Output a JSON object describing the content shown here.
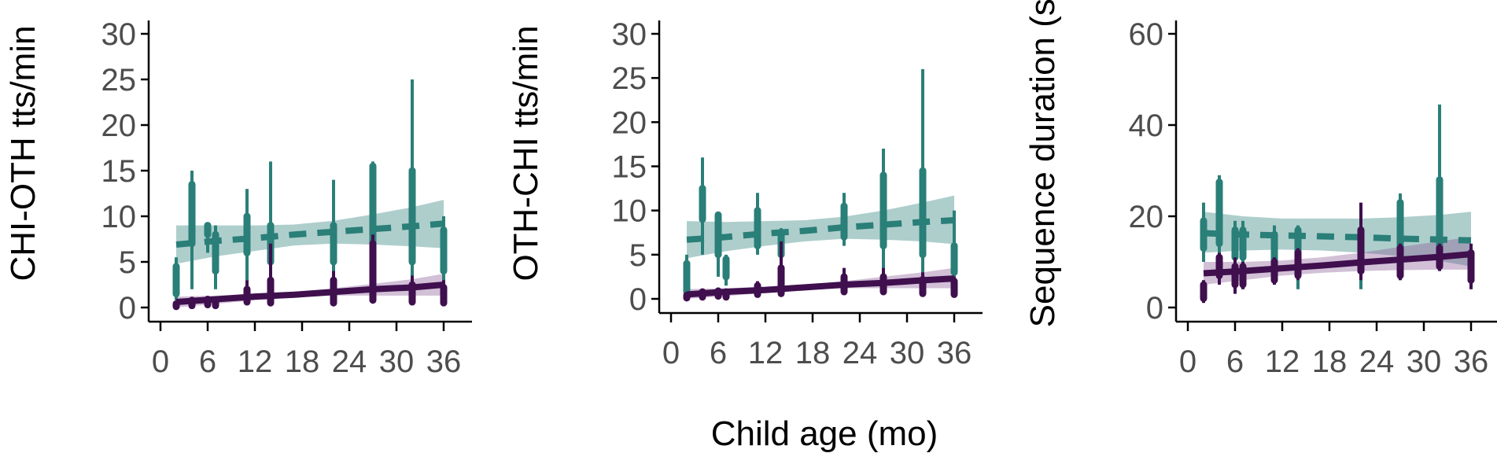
{
  "figure": {
    "shared_xlabel": "Child age (mo)"
  },
  "chart_data": [
    {
      "type": "line",
      "ylabel": "CHI-OTH tts/min",
      "xlabel": "",
      "xlim": [
        0,
        39
      ],
      "ylim": [
        -1.5,
        31
      ],
      "xticks": [
        0,
        6,
        12,
        18,
        24,
        30,
        36
      ],
      "yticks": [
        0,
        5,
        10,
        15,
        20,
        25,
        30
      ],
      "series": [
        {
          "color": "#2a7f78",
          "fill": "#2a7f78",
          "line_style": "dashed",
          "fit": {
            "x": [
              2,
              7,
              12,
              17,
              22,
              27,
              32,
              36
            ],
            "y": [
              6.9,
              7.3,
              7.6,
              8.0,
              8.3,
              8.6,
              8.9,
              9.2
            ]
          },
          "band_upper": [
            9.0,
            9.0,
            9.0,
            9.1,
            9.5,
            10.2,
            11.0,
            11.8
          ],
          "band_lower": [
            4.8,
            5.6,
            6.2,
            6.8,
            7.0,
            6.9,
            6.7,
            6.5
          ],
          "intervals": [
            {
              "x": 2.0,
              "lo": 0.8,
              "hi": 5.5,
              "inner_lo": 1.5,
              "inner_hi": 4.5
            },
            {
              "x": 4.0,
              "lo": 2.0,
              "hi": 15.0,
              "inner_lo": 7.0,
              "inner_hi": 13.5
            },
            {
              "x": 6.0,
              "lo": 6.0,
              "hi": 9.2,
              "inner_lo": 8.0,
              "inner_hi": 9.0
            },
            {
              "x": 7.0,
              "lo": 2.0,
              "hi": 9.0,
              "inner_lo": 4.0,
              "inner_hi": 8.0
            },
            {
              "x": 11.0,
              "lo": 3.0,
              "hi": 13.0,
              "inner_lo": 6.0,
              "inner_hi": 10.0
            },
            {
              "x": 14.0,
              "lo": 4.0,
              "hi": 16.0,
              "inner_lo": 5.0,
              "inner_hi": 9.0
            },
            {
              "x": 22.0,
              "lo": 3.0,
              "hi": 14.0,
              "inner_lo": 5.0,
              "inner_hi": 9.0
            },
            {
              "x": 27.0,
              "lo": 4.0,
              "hi": 16.0,
              "inner_lo": 7.0,
              "inner_hi": 15.5
            },
            {
              "x": 32.0,
              "lo": 2.0,
              "hi": 25.0,
              "inner_lo": 5.0,
              "inner_hi": 15.0
            },
            {
              "x": 36.0,
              "lo": 2.5,
              "hi": 10.0,
              "inner_lo": 4.0,
              "inner_hi": 8.5
            }
          ]
        },
        {
          "color": "#3f0f4e",
          "fill": "#8a5a97",
          "line_style": "solid",
          "fit": {
            "x": [
              2,
              7,
              12,
              17,
              22,
              27,
              32,
              36
            ],
            "y": [
              0.6,
              0.9,
              1.2,
              1.4,
              1.7,
              2.0,
              2.2,
              2.5
            ]
          },
          "band_upper": [
            1.2,
            1.3,
            1.5,
            1.7,
            2.1,
            2.6,
            3.1,
            3.7
          ],
          "band_lower": [
            0.0,
            0.4,
            0.8,
            1.1,
            1.3,
            1.3,
            1.3,
            1.3
          ],
          "intervals": [
            {
              "x": 2.0,
              "lo": 0.0,
              "hi": 0.6,
              "inner_lo": 0.1,
              "inner_hi": 0.4
            },
            {
              "x": 4.0,
              "lo": 0.1,
              "hi": 1.0,
              "inner_lo": 0.2,
              "inner_hi": 0.8
            },
            {
              "x": 6.0,
              "lo": 0.2,
              "hi": 1.2,
              "inner_lo": 0.3,
              "inner_hi": 0.9
            },
            {
              "x": 7.0,
              "lo": 0.0,
              "hi": 1.0,
              "inner_lo": 0.2,
              "inner_hi": 0.8
            },
            {
              "x": 11.0,
              "lo": 0.3,
              "hi": 3.0,
              "inner_lo": 0.6,
              "inner_hi": 2.0
            },
            {
              "x": 14.0,
              "lo": 0.2,
              "hi": 7.0,
              "inner_lo": 0.5,
              "inner_hi": 3.0
            },
            {
              "x": 22.0,
              "lo": 0.2,
              "hi": 4.0,
              "inner_lo": 0.5,
              "inner_hi": 3.0
            },
            {
              "x": 27.0,
              "lo": 0.5,
              "hi": 8.0,
              "inner_lo": 0.8,
              "inner_hi": 7.0
            },
            {
              "x": 32.0,
              "lo": 0.3,
              "hi": 3.5,
              "inner_lo": 0.6,
              "inner_hi": 2.5
            },
            {
              "x": 36.0,
              "lo": 0.2,
              "hi": 3.0,
              "inner_lo": 0.5,
              "inner_hi": 2.2
            }
          ]
        }
      ]
    },
    {
      "type": "line",
      "ylabel": "OTH-CHI tts/min",
      "xlabel": "",
      "xlim": [
        0,
        39
      ],
      "ylim": [
        -1.5,
        31
      ],
      "xticks": [
        0,
        6,
        12,
        18,
        24,
        30,
        36
      ],
      "yticks": [
        0,
        5,
        10,
        15,
        20,
        25,
        30
      ],
      "series": [
        {
          "color": "#2a7f78",
          "fill": "#2a7f78",
          "line_style": "dashed",
          "fit": {
            "x": [
              2,
              7,
              12,
              17,
              22,
              27,
              32,
              36
            ],
            "y": [
              6.7,
              7.0,
              7.4,
              7.7,
              8.1,
              8.4,
              8.7,
              8.9
            ]
          },
          "band_upper": [
            8.8,
            8.7,
            8.8,
            8.9,
            9.3,
            10.0,
            10.9,
            11.7
          ],
          "band_lower": [
            4.6,
            5.4,
            6.0,
            6.5,
            6.8,
            6.7,
            6.5,
            6.2
          ],
          "intervals": [
            {
              "x": 2.0,
              "lo": 0.3,
              "hi": 5.0,
              "inner_lo": 0.8,
              "inner_hi": 4.0
            },
            {
              "x": 4.0,
              "lo": 5.0,
              "hi": 16.0,
              "inner_lo": 9.0,
              "inner_hi": 12.5
            },
            {
              "x": 6.0,
              "lo": 2.5,
              "hi": 9.8,
              "inner_lo": 5.0,
              "inner_hi": 9.5
            },
            {
              "x": 7.0,
              "lo": 1.5,
              "hi": 5.0,
              "inner_lo": 2.5,
              "inner_hi": 4.5
            },
            {
              "x": 11.0,
              "lo": 5.0,
              "hi": 12.0,
              "inner_lo": 6.0,
              "inner_hi": 10.0
            },
            {
              "x": 14.0,
              "lo": 4.0,
              "hi": 8.0,
              "inner_lo": 5.0,
              "inner_hi": 7.5
            },
            {
              "x": 22.0,
              "lo": 6.0,
              "hi": 12.0,
              "inner_lo": 7.0,
              "inner_hi": 10.5
            },
            {
              "x": 27.0,
              "lo": 3.0,
              "hi": 17.0,
              "inner_lo": 6.0,
              "inner_hi": 14.0
            },
            {
              "x": 32.0,
              "lo": 2.0,
              "hi": 26.0,
              "inner_lo": 5.0,
              "inner_hi": 14.5
            },
            {
              "x": 36.0,
              "lo": 2.0,
              "hi": 10.0,
              "inner_lo": 3.0,
              "inner_hi": 6.0
            }
          ]
        },
        {
          "color": "#3f0f4e",
          "fill": "#8a5a97",
          "line_style": "solid",
          "fit": {
            "x": [
              2,
              7,
              12,
              17,
              22,
              27,
              32,
              36
            ],
            "y": [
              0.5,
              0.8,
              1.0,
              1.3,
              1.6,
              1.8,
              2.1,
              2.3
            ]
          },
          "band_upper": [
            1.1,
            1.2,
            1.4,
            1.6,
            2.0,
            2.5,
            3.0,
            3.5
          ],
          "band_lower": [
            0.0,
            0.3,
            0.7,
            1.0,
            1.2,
            1.2,
            1.2,
            1.2
          ],
          "intervals": [
            {
              "x": 2.0,
              "lo": 0.0,
              "hi": 0.5,
              "inner_lo": 0.1,
              "inner_hi": 0.4
            },
            {
              "x": 4.0,
              "lo": 0.0,
              "hi": 1.0,
              "inner_lo": 0.2,
              "inner_hi": 0.8
            },
            {
              "x": 6.0,
              "lo": 0.1,
              "hi": 1.2,
              "inner_lo": 0.3,
              "inner_hi": 0.9
            },
            {
              "x": 7.0,
              "lo": 0.1,
              "hi": 1.0,
              "inner_lo": 0.2,
              "inner_hi": 0.8
            },
            {
              "x": 11.0,
              "lo": 0.3,
              "hi": 2.0,
              "inner_lo": 0.5,
              "inner_hi": 1.5
            },
            {
              "x": 14.0,
              "lo": 0.3,
              "hi": 6.5,
              "inner_lo": 0.6,
              "inner_hi": 3.5
            },
            {
              "x": 22.0,
              "lo": 0.5,
              "hi": 3.5,
              "inner_lo": 0.8,
              "inner_hi": 2.5
            },
            {
              "x": 27.0,
              "lo": 0.5,
              "hi": 3.5,
              "inner_lo": 0.8,
              "inner_hi": 2.5
            },
            {
              "x": 32.0,
              "lo": 0.3,
              "hi": 3.0,
              "inner_lo": 0.6,
              "inner_hi": 2.2
            },
            {
              "x": 36.0,
              "lo": 0.2,
              "hi": 2.5,
              "inner_lo": 0.5,
              "inner_hi": 2.0
            }
          ]
        }
      ]
    },
    {
      "type": "line",
      "ylabel": "Sequence duration (se",
      "xlabel": "",
      "xlim": [
        0,
        39
      ],
      "ylim": [
        -3,
        62
      ],
      "xticks": [
        0,
        6,
        12,
        18,
        24,
        30,
        36
      ],
      "yticks": [
        0,
        20,
        40,
        60
      ],
      "series": [
        {
          "color": "#2a7f78",
          "fill": "#2a7f78",
          "line_style": "dashed",
          "fit": {
            "x": [
              2,
              7,
              12,
              17,
              22,
              27,
              32,
              36
            ],
            "y": [
              16.3,
              16.0,
              15.8,
              15.6,
              15.4,
              15.1,
              14.9,
              14.7
            ]
          },
          "band_upper": [
            21.0,
            20.0,
            19.5,
            19.5,
            19.5,
            19.8,
            20.3,
            21.0
          ],
          "band_lower": [
            12.0,
            12.5,
            12.7,
            12.5,
            12.0,
            11.3,
            10.2,
            9.0
          ],
          "intervals": [
            {
              "x": 2.0,
              "lo": 10.0,
              "hi": 23.0,
              "inner_lo": 13.0,
              "inner_hi": 19.0
            },
            {
              "x": 4.0,
              "lo": 10.0,
              "hi": 29.0,
              "inner_lo": 14.0,
              "inner_hi": 27.5
            },
            {
              "x": 6.0,
              "lo": 9.0,
              "hi": 19.0,
              "inner_lo": 11.0,
              "inner_hi": 17.0
            },
            {
              "x": 7.0,
              "lo": 9.0,
              "hi": 19.0,
              "inner_lo": 11.0,
              "inner_hi": 17.0
            },
            {
              "x": 11.0,
              "lo": 8.0,
              "hi": 18.0,
              "inner_lo": 10.0,
              "inner_hi": 16.0
            },
            {
              "x": 14.0,
              "lo": 4.0,
              "hi": 18.0,
              "inner_lo": 8.0,
              "inner_hi": 17.0
            },
            {
              "x": 22.0,
              "lo": 4.0,
              "hi": 18.0,
              "inner_lo": 8.0,
              "inner_hi": 17.0
            },
            {
              "x": 27.0,
              "lo": 6.0,
              "hi": 25.0,
              "inner_lo": 10.0,
              "inner_hi": 23.0
            },
            {
              "x": 32.0,
              "lo": 8.0,
              "hi": 44.5,
              "inner_lo": 12.0,
              "inner_hi": 28.0
            },
            {
              "x": 36.0,
              "lo": 5.0,
              "hi": 9.0,
              "inner_lo": 6.0,
              "inner_hi": 8.0
            }
          ]
        },
        {
          "color": "#3f0f4e",
          "fill": "#8a5a97",
          "line_style": "solid",
          "fit": {
            "x": [
              2,
              7,
              12,
              17,
              22,
              27,
              32,
              36
            ],
            "y": [
              7.5,
              8.0,
              8.6,
              9.2,
              9.9,
              10.5,
              11.1,
              11.7
            ]
          },
          "band_upper": [
            10.0,
            10.0,
            10.3,
            11.0,
            12.0,
            13.3,
            14.5,
            15.5
          ],
          "band_lower": [
            5.0,
            6.0,
            7.0,
            7.6,
            8.0,
            8.2,
            8.3,
            8.3
          ],
          "intervals": [
            {
              "x": 2.0,
              "lo": 1.0,
              "hi": 6.0,
              "inner_lo": 2.0,
              "inner_hi": 5.0
            },
            {
              "x": 4.0,
              "lo": 5.0,
              "hi": 12.0,
              "inner_lo": 7.0,
              "inner_hi": 11.0
            },
            {
              "x": 6.0,
              "lo": 3.0,
              "hi": 11.0,
              "inner_lo": 5.0,
              "inner_hi": 9.0
            },
            {
              "x": 7.0,
              "lo": 4.0,
              "hi": 10.0,
              "inner_lo": 5.0,
              "inner_hi": 9.0
            },
            {
              "x": 11.0,
              "lo": 5.0,
              "hi": 11.0,
              "inner_lo": 6.0,
              "inner_hi": 10.0
            },
            {
              "x": 14.0,
              "lo": 6.0,
              "hi": 13.0,
              "inner_lo": 7.0,
              "inner_hi": 12.0
            },
            {
              "x": 22.0,
              "lo": 6.0,
              "hi": 23.0,
              "inner_lo": 8.0,
              "inner_hi": 17.0
            },
            {
              "x": 27.0,
              "lo": 6.0,
              "hi": 14.0,
              "inner_lo": 7.0,
              "inner_hi": 13.0
            },
            {
              "x": 32.0,
              "lo": 8.0,
              "hi": 14.0,
              "inner_lo": 9.0,
              "inner_hi": 13.0
            },
            {
              "x": 36.0,
              "lo": 4.0,
              "hi": 14.0,
              "inner_lo": 6.0,
              "inner_hi": 12.0
            }
          ]
        }
      ]
    }
  ]
}
